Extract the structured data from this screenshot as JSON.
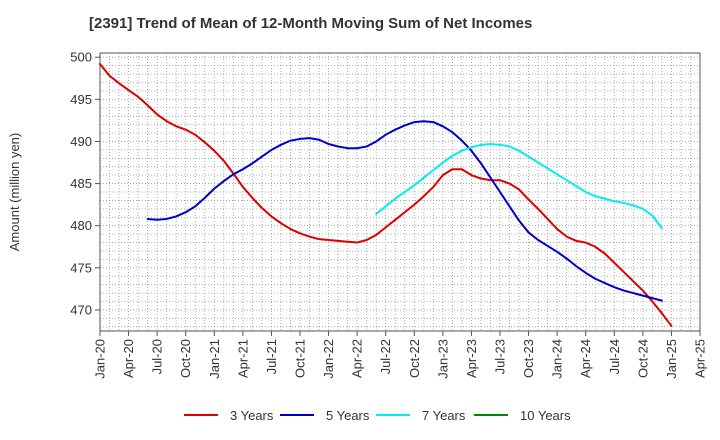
{
  "chart_data": {
    "type": "line",
    "title": "[2391]  Trend of Mean of 12-Month Moving Sum of Net Incomes",
    "xlabel": "",
    "ylabel": "Amount (million yen)",
    "ylim": [
      467.5,
      500.5
    ],
    "yticks": [
      470,
      475,
      480,
      485,
      490,
      495,
      500
    ],
    "xticks": [
      "Jan-20",
      "Apr-20",
      "Jul-20",
      "Oct-20",
      "Jan-21",
      "Apr-21",
      "Jul-21",
      "Oct-21",
      "Jan-22",
      "Apr-22",
      "Jul-22",
      "Oct-22",
      "Jan-23",
      "Apr-23",
      "Jul-23",
      "Oct-23",
      "Jan-24",
      "Apr-24",
      "Jul-24",
      "Oct-24",
      "Jan-25",
      "Apr-25"
    ],
    "grid": true,
    "legend_position": "bottom",
    "series": [
      {
        "name": "3 Years",
        "color": "#dd0000",
        "points": [
          [
            "Jan-20",
            499.2
          ],
          [
            "Feb-20",
            497.8
          ],
          [
            "Mar-20",
            496.9
          ],
          [
            "Apr-20",
            496.1
          ],
          [
            "May-20",
            495.3
          ],
          [
            "Jun-20",
            494.3
          ],
          [
            "Jul-20",
            493.2
          ],
          [
            "Aug-20",
            492.4
          ],
          [
            "Sep-20",
            491.8
          ],
          [
            "Oct-20",
            491.4
          ],
          [
            "Nov-20",
            490.8
          ],
          [
            "Dec-20",
            489.9
          ],
          [
            "Jan-21",
            488.9
          ],
          [
            "Feb-21",
            487.7
          ],
          [
            "Mar-21",
            486.2
          ],
          [
            "Apr-21",
            484.6
          ],
          [
            "May-21",
            483.3
          ],
          [
            "Jun-21",
            482.1
          ],
          [
            "Jul-21",
            481.1
          ],
          [
            "Aug-21",
            480.3
          ],
          [
            "Sep-21",
            479.6
          ],
          [
            "Oct-21",
            479.1
          ],
          [
            "Nov-21",
            478.7
          ],
          [
            "Dec-21",
            478.4
          ],
          [
            "Jan-22",
            478.3
          ],
          [
            "Feb-22",
            478.2
          ],
          [
            "Mar-22",
            478.1
          ],
          [
            "Apr-22",
            478.0
          ],
          [
            "May-22",
            478.3
          ],
          [
            "Jun-22",
            478.9
          ],
          [
            "Jul-22",
            479.8
          ],
          [
            "Aug-22",
            480.7
          ],
          [
            "Sep-22",
            481.6
          ],
          [
            "Oct-22",
            482.5
          ],
          [
            "Nov-22",
            483.5
          ],
          [
            "Dec-22",
            484.6
          ],
          [
            "Jan-23",
            486.0
          ],
          [
            "Feb-23",
            486.7
          ],
          [
            "Mar-23",
            486.7
          ],
          [
            "Apr-23",
            486.0
          ],
          [
            "May-23",
            485.6
          ],
          [
            "Jun-23",
            485.4
          ],
          [
            "Jul-23",
            485.4
          ],
          [
            "Aug-23",
            485.0
          ],
          [
            "Sep-23",
            484.3
          ],
          [
            "Oct-23",
            483.1
          ],
          [
            "Nov-23",
            482.0
          ],
          [
            "Dec-23",
            480.8
          ],
          [
            "Jan-24",
            479.6
          ],
          [
            "Feb-24",
            478.7
          ],
          [
            "Mar-24",
            478.2
          ],
          [
            "Apr-24",
            478.0
          ],
          [
            "May-24",
            477.5
          ],
          [
            "Jun-24",
            476.7
          ],
          [
            "Jul-24",
            475.6
          ],
          [
            "Aug-24",
            474.5
          ],
          [
            "Sep-24",
            473.4
          ],
          [
            "Oct-24",
            472.3
          ],
          [
            "Nov-24",
            471.0
          ],
          [
            "Dec-24",
            469.6
          ],
          [
            "Jan-25",
            468.1
          ]
        ]
      },
      {
        "name": "5 Years",
        "color": "#0000cc",
        "points": [
          [
            "Jun-20",
            480.8
          ],
          [
            "Jul-20",
            480.7
          ],
          [
            "Aug-20",
            480.8
          ],
          [
            "Sep-20",
            481.1
          ],
          [
            "Oct-20",
            481.6
          ],
          [
            "Nov-20",
            482.3
          ],
          [
            "Dec-20",
            483.3
          ],
          [
            "Jan-21",
            484.4
          ],
          [
            "Feb-21",
            485.3
          ],
          [
            "Mar-21",
            486.1
          ],
          [
            "Apr-21",
            486.7
          ],
          [
            "May-21",
            487.4
          ],
          [
            "Jun-21",
            488.2
          ],
          [
            "Jul-21",
            489.0
          ],
          [
            "Aug-21",
            489.6
          ],
          [
            "Sep-21",
            490.1
          ],
          [
            "Oct-21",
            490.3
          ],
          [
            "Nov-21",
            490.4
          ],
          [
            "Dec-21",
            490.2
          ],
          [
            "Jan-22",
            489.7
          ],
          [
            "Feb-22",
            489.4
          ],
          [
            "Mar-22",
            489.2
          ],
          [
            "Apr-22",
            489.2
          ],
          [
            "May-22",
            489.4
          ],
          [
            "Jun-22",
            490.0
          ],
          [
            "Jul-22",
            490.8
          ],
          [
            "Aug-22",
            491.4
          ],
          [
            "Sep-22",
            491.9
          ],
          [
            "Oct-22",
            492.3
          ],
          [
            "Nov-22",
            492.4
          ],
          [
            "Dec-22",
            492.3
          ],
          [
            "Jan-23",
            491.8
          ],
          [
            "Feb-23",
            491.1
          ],
          [
            "Mar-23",
            490.1
          ],
          [
            "Apr-23",
            488.9
          ],
          [
            "May-23",
            487.4
          ],
          [
            "Jun-23",
            485.7
          ],
          [
            "Jul-23",
            484.0
          ],
          [
            "Aug-23",
            482.3
          ],
          [
            "Sep-23",
            480.6
          ],
          [
            "Oct-23",
            479.2
          ],
          [
            "Nov-23",
            478.3
          ],
          [
            "Dec-23",
            477.6
          ],
          [
            "Jan-24",
            476.9
          ],
          [
            "Feb-24",
            476.1
          ],
          [
            "Mar-24",
            475.2
          ],
          [
            "Apr-24",
            474.4
          ],
          [
            "May-24",
            473.7
          ],
          [
            "Jun-24",
            473.2
          ],
          [
            "Jul-24",
            472.7
          ],
          [
            "Aug-24",
            472.3
          ],
          [
            "Sep-24",
            472.0
          ],
          [
            "Oct-24",
            471.7
          ],
          [
            "Nov-24",
            471.4
          ],
          [
            "Dec-24",
            471.1
          ]
        ]
      },
      {
        "name": "7 Years",
        "color": "#00eeee",
        "points": [
          [
            "Jun-22",
            481.4
          ],
          [
            "Jul-22",
            482.3
          ],
          [
            "Aug-22",
            483.2
          ],
          [
            "Sep-22",
            484.0
          ],
          [
            "Oct-22",
            484.8
          ],
          [
            "Nov-22",
            485.7
          ],
          [
            "Dec-22",
            486.6
          ],
          [
            "Jan-23",
            487.5
          ],
          [
            "Feb-23",
            488.3
          ],
          [
            "Mar-23",
            488.9
          ],
          [
            "Apr-23",
            489.3
          ],
          [
            "May-23",
            489.6
          ],
          [
            "Jun-23",
            489.7
          ],
          [
            "Jul-23",
            489.6
          ],
          [
            "Aug-23",
            489.4
          ],
          [
            "Sep-23",
            488.9
          ],
          [
            "Oct-23",
            488.2
          ],
          [
            "Nov-23",
            487.5
          ],
          [
            "Dec-23",
            486.8
          ],
          [
            "Jan-24",
            486.1
          ],
          [
            "Feb-24",
            485.4
          ],
          [
            "Mar-24",
            484.7
          ],
          [
            "Apr-24",
            484.0
          ],
          [
            "May-24",
            483.5
          ],
          [
            "Jun-24",
            483.2
          ],
          [
            "Jul-24",
            482.9
          ],
          [
            "Aug-24",
            482.7
          ],
          [
            "Sep-24",
            482.4
          ],
          [
            "Oct-24",
            482.0
          ],
          [
            "Nov-24",
            481.2
          ],
          [
            "Dec-24",
            479.7
          ]
        ]
      },
      {
        "name": "10 Years",
        "color": "#008800",
        "points": []
      }
    ]
  }
}
